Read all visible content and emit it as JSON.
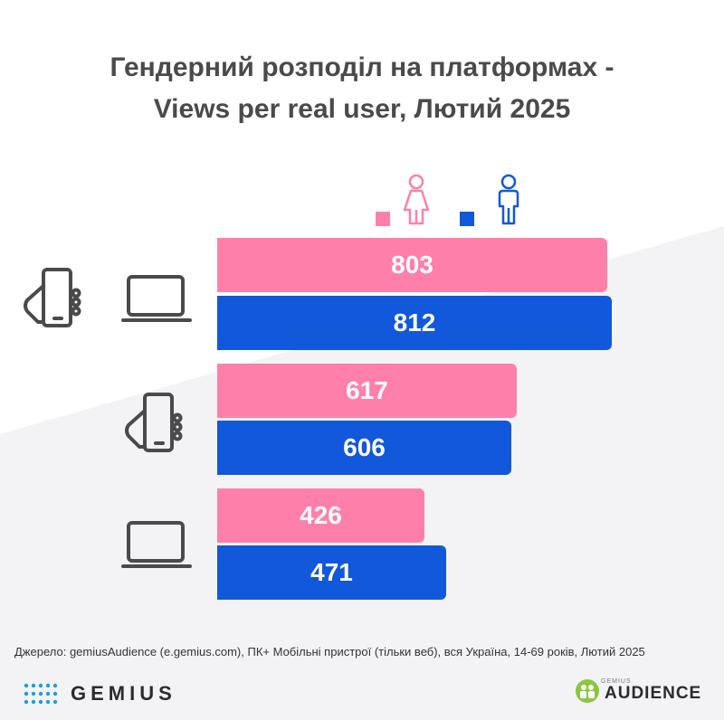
{
  "title_line1": "Гендерний розподіл на платформах -",
  "title_line2": "Views per real user, Лютий 2025",
  "colors": {
    "female": "#ff7fab",
    "male": "#1158db",
    "text": "#4a4a4a"
  },
  "legend": [
    {
      "icon": "female-icon",
      "color": "#ff7fab"
    },
    {
      "icon": "male-icon",
      "color": "#1158db"
    }
  ],
  "chart_data": {
    "type": "bar",
    "orientation": "horizontal",
    "categories": [
      "pc-and-mobile",
      "mobile",
      "pc"
    ],
    "category_icons": [
      [
        "smartphone-icon",
        "laptop-icon"
      ],
      [
        "smartphone-icon"
      ],
      [
        "laptop-icon"
      ]
    ],
    "series": [
      {
        "icon": "female-icon",
        "color": "#ff7fab",
        "values": [
          803,
          617,
          426
        ]
      },
      {
        "icon": "male-icon",
        "color": "#1158db",
        "values": [
          812,
          606,
          471
        ]
      }
    ],
    "value_labels": {
      "female": [
        "803",
        "617",
        "426"
      ],
      "male": [
        "812",
        "606",
        "471"
      ]
    }
  },
  "source": "Джерело: gemiusAudience (e.gemius.com), ПК+ Мобільні пристрої (тільки веб), вся Україна, 14-69 років, Лютий 2025",
  "logos": {
    "gemius": "GEMIUS",
    "audience_small": "GEMIUS",
    "audience": "AUDIENCE"
  }
}
